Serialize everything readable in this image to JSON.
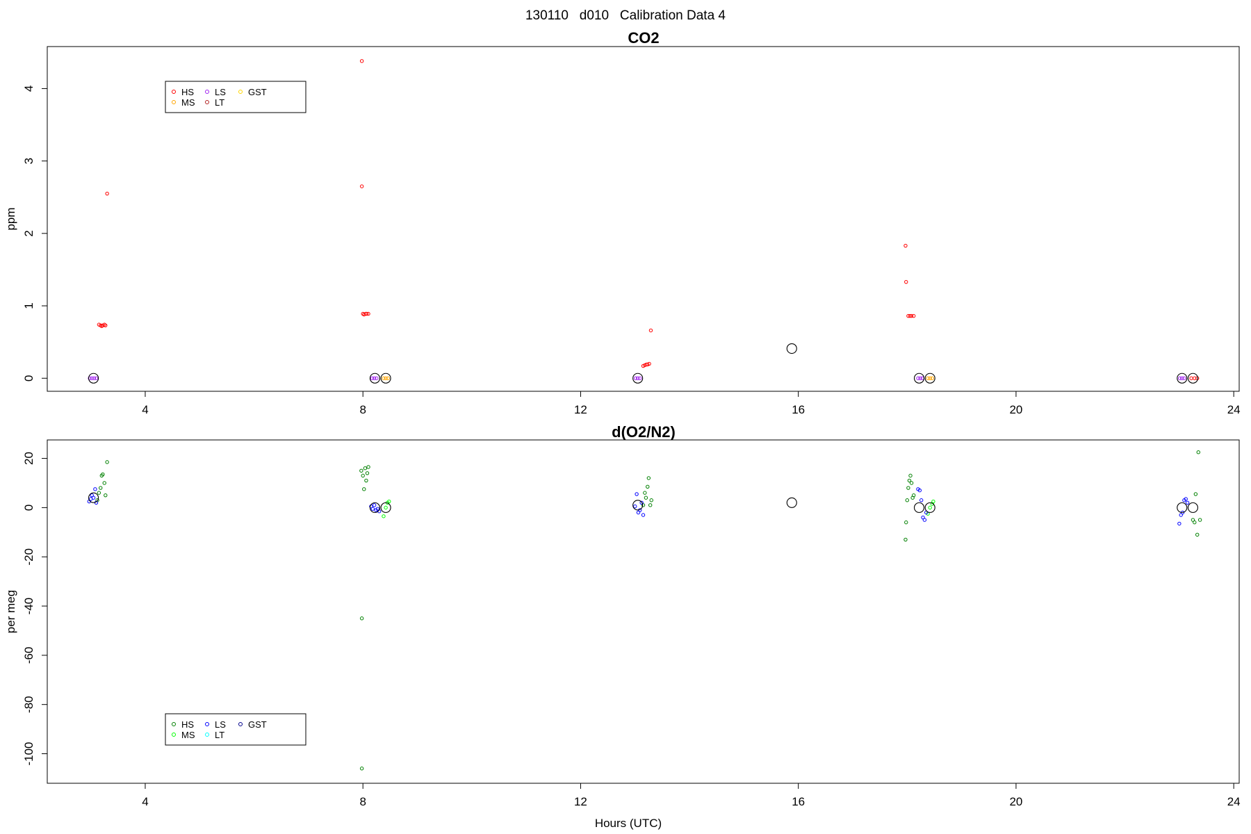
{
  "suptitle": "130110   d010   Calibration Data 4",
  "chart_data": [
    {
      "type": "scatter",
      "title": "CO2",
      "xlabel": "",
      "ylabel": "ppm",
      "xlim": [
        2.2,
        24.1
      ],
      "ylim": [
        -0.18,
        4.58
      ],
      "xticks": [
        4,
        8,
        12,
        16,
        20,
        24
      ],
      "yticks": [
        0,
        1,
        2,
        3,
        4
      ],
      "ytick_rotated": true,
      "legend": {
        "placement": "top-left",
        "entries": [
          {
            "label": "HS",
            "color": "#ff0000"
          },
          {
            "label": "MS",
            "color": "#ffa500"
          },
          {
            "label": "LS",
            "color": "#a020f0"
          },
          {
            "label": "LT",
            "color": "#b22222"
          },
          {
            "label": "GST",
            "color": "#ffd700"
          }
        ]
      },
      "series": [
        {
          "name": "HS",
          "color": "#ff0000",
          "points": [
            [
              3.15,
              0.74
            ],
            [
              3.18,
              0.73
            ],
            [
              3.2,
              0.72
            ],
            [
              3.22,
              0.73
            ],
            [
              3.25,
              0.74
            ],
            [
              3.27,
              0.73
            ],
            [
              3.3,
              2.55
            ],
            [
              7.98,
              4.38
            ],
            [
              7.98,
              2.65
            ],
            [
              8.0,
              0.89
            ],
            [
              8.02,
              0.88
            ],
            [
              8.05,
              0.89
            ],
            [
              8.07,
              0.89
            ],
            [
              8.1,
              0.89
            ],
            [
              13.15,
              0.17
            ],
            [
              13.18,
              0.18
            ],
            [
              13.21,
              0.19
            ],
            [
              13.23,
              0.19
            ],
            [
              13.26,
              0.2
            ],
            [
              13.29,
              0.66
            ],
            [
              17.97,
              1.83
            ],
            [
              17.98,
              1.33
            ],
            [
              18.02,
              0.86
            ],
            [
              18.05,
              0.86
            ],
            [
              18.08,
              0.86
            ],
            [
              18.12,
              0.86
            ],
            [
              23.22,
              0.0
            ],
            [
              23.28,
              0.0
            ],
            [
              23.33,
              0.0
            ]
          ]
        },
        {
          "name": "MS",
          "color": "#ffa500",
          "points": [
            [
              8.38,
              0.0
            ],
            [
              8.42,
              0.0
            ],
            [
              8.46,
              0.0
            ],
            [
              18.38,
              0.0
            ],
            [
              18.42,
              0.0
            ],
            [
              18.46,
              0.0
            ]
          ]
        },
        {
          "name": "LS",
          "color": "#a020f0",
          "points": [
            [
              2.98,
              0.0
            ],
            [
              3.02,
              0.0
            ],
            [
              3.06,
              0.0
            ],
            [
              3.1,
              0.0
            ],
            [
              8.17,
              0.0
            ],
            [
              8.21,
              0.0
            ],
            [
              8.25,
              0.0
            ],
            [
              13.01,
              0.0
            ],
            [
              13.05,
              0.0
            ],
            [
              13.09,
              0.0
            ],
            [
              18.2,
              0.0
            ],
            [
              18.24,
              0.0
            ],
            [
              18.28,
              0.0
            ],
            [
              23.01,
              0.0
            ],
            [
              23.05,
              0.0
            ],
            [
              23.09,
              0.0
            ]
          ]
        },
        {
          "name": "LT",
          "color": "#b22222",
          "points": []
        },
        {
          "name": "GST",
          "color": "#ffd700",
          "points": []
        },
        {
          "name": "",
          "color": "#000000",
          "size": "large",
          "points": [
            [
              3.05,
              0.0
            ],
            [
              8.22,
              0.0
            ],
            [
              8.42,
              0.0
            ],
            [
              13.05,
              0.0
            ],
            [
              15.88,
              0.41
            ],
            [
              18.22,
              0.0
            ],
            [
              18.42,
              0.0
            ],
            [
              23.05,
              0.0
            ],
            [
              23.25,
              0.0
            ]
          ]
        }
      ]
    },
    {
      "type": "scatter",
      "title": "d(O2/N2)",
      "xlabel": "Hours (UTC)",
      "ylabel": "per meg",
      "xlim": [
        2.2,
        24.1
      ],
      "ylim": [
        -112,
        27.5
      ],
      "xticks": [
        4,
        8,
        12,
        16,
        20,
        24
      ],
      "yticks": [
        20,
        0,
        -20,
        -40,
        -60,
        -80,
        -100
      ],
      "ytick_rotated": true,
      "legend": {
        "placement": "bottom-left",
        "entries": [
          {
            "label": "HS",
            "color": "#008000"
          },
          {
            "label": "MS",
            "color": "#00ff00"
          },
          {
            "label": "LS",
            "color": "#0000ff"
          },
          {
            "label": "LT",
            "color": "#00ffff"
          },
          {
            "label": "GST",
            "color": "#00008b"
          }
        ]
      },
      "series": [
        {
          "name": "HS",
          "color": "#008000",
          "points": [
            [
              3.12,
              3
            ],
            [
              3.15,
              6
            ],
            [
              3.18,
              8
            ],
            [
              3.2,
              13
            ],
            [
              3.22,
              13.5
            ],
            [
              3.25,
              10
            ],
            [
              3.27,
              5
            ],
            [
              3.3,
              18.5
            ],
            [
              7.97,
              15
            ],
            [
              7.98,
              -45
            ],
            [
              7.98,
              -106
            ],
            [
              8.0,
              13
            ],
            [
              8.02,
              7.5
            ],
            [
              8.04,
              16
            ],
            [
              8.06,
              11
            ],
            [
              8.08,
              14
            ],
            [
              8.1,
              16.5
            ],
            [
              13.15,
              1
            ],
            [
              13.18,
              6
            ],
            [
              13.2,
              4
            ],
            [
              13.23,
              8.5
            ],
            [
              13.25,
              12
            ],
            [
              13.28,
              1
            ],
            [
              13.3,
              3
            ],
            [
              17.97,
              -13
            ],
            [
              17.98,
              -6
            ],
            [
              18.0,
              3
            ],
            [
              18.02,
              8
            ],
            [
              18.04,
              11
            ],
            [
              18.06,
              13
            ],
            [
              18.08,
              10
            ],
            [
              18.1,
              4
            ],
            [
              18.12,
              5
            ],
            [
              23.25,
              -5
            ],
            [
              23.28,
              -6
            ],
            [
              23.3,
              5.5
            ],
            [
              23.33,
              -11
            ],
            [
              23.35,
              22.5
            ],
            [
              23.38,
              -5
            ]
          ]
        },
        {
          "name": "MS",
          "color": "#00ff00",
          "points": [
            [
              8.38,
              -3.5
            ],
            [
              8.42,
              0
            ],
            [
              8.45,
              2
            ],
            [
              8.48,
              2.5
            ],
            [
              18.38,
              -2.5
            ],
            [
              18.42,
              0
            ],
            [
              18.46,
              1.5
            ],
            [
              18.48,
              2.5
            ]
          ]
        },
        {
          "name": "LS",
          "color": "#0000ff",
          "points": [
            [
              2.97,
              2.5
            ],
            [
              3.0,
              3.5
            ],
            [
              3.02,
              5
            ],
            [
              3.05,
              4
            ],
            [
              3.08,
              7.5
            ],
            [
              3.1,
              2
            ],
            [
              8.15,
              0.5
            ],
            [
              8.18,
              -0.5
            ],
            [
              8.21,
              1
            ],
            [
              8.24,
              -1
            ],
            [
              8.27,
              -0.5
            ],
            [
              8.3,
              -1.5
            ],
            [
              13.0,
              0.5
            ],
            [
              13.03,
              5.5
            ],
            [
              13.06,
              -2
            ],
            [
              13.09,
              -1
            ],
            [
              13.12,
              2
            ],
            [
              13.15,
              -3
            ],
            [
              18.2,
              7.5
            ],
            [
              18.23,
              7
            ],
            [
              18.26,
              3
            ],
            [
              18.29,
              -4
            ],
            [
              18.32,
              -5
            ],
            [
              18.35,
              -2
            ],
            [
              23.0,
              -6.5
            ],
            [
              23.03,
              -3
            ],
            [
              23.06,
              -2
            ],
            [
              23.09,
              3
            ],
            [
              23.12,
              3.5
            ],
            [
              23.15,
              2
            ]
          ]
        },
        {
          "name": "LT",
          "color": "#00ffff",
          "points": []
        },
        {
          "name": "GST",
          "color": "#00008b",
          "points": []
        },
        {
          "name": "",
          "color": "#000000",
          "size": "large",
          "points": [
            [
              3.05,
              4
            ],
            [
              8.22,
              0
            ],
            [
              8.42,
              0
            ],
            [
              13.05,
              1
            ],
            [
              15.88,
              2
            ],
            [
              18.22,
              0
            ],
            [
              18.42,
              0
            ],
            [
              23.05,
              0
            ],
            [
              23.25,
              0
            ]
          ]
        }
      ]
    }
  ]
}
